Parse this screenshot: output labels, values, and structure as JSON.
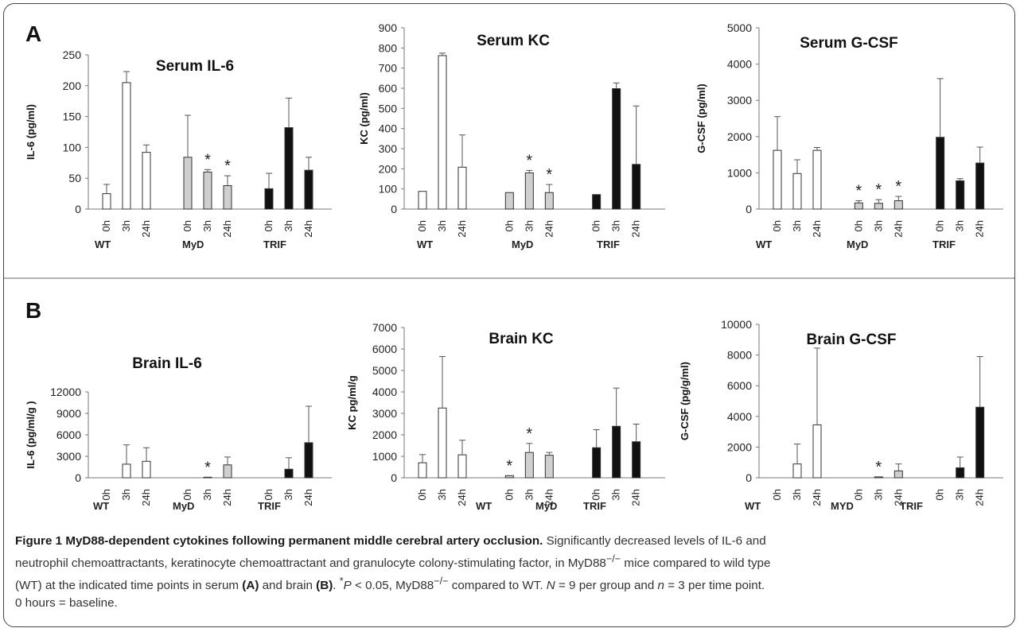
{
  "figure": {
    "panels": [
      {
        "letter": "A"
      },
      {
        "letter": "B"
      }
    ],
    "caption": {
      "label": "Figure 1",
      "title": "MyD88-dependent cytokines following permanent middle cerebral artery occlusion.",
      "line1": "Significantly decreased levels of IL-6 and",
      "line2": "neutrophil chemoattractants, keratinocyte chemoattractant and granulocyte colony-stimulating factor, in MyD88",
      "line2_sup": "−/−",
      "line2_end": " mice compared to wild type",
      "line3_a": "(WT) at the indicated time points in serum ",
      "line3_A": "(A)",
      "line3_b": " and brain ",
      "line3_B": "(B)",
      "line3_c": ". ",
      "line3_star": "*",
      "line3_P": "P",
      "line3_d": " < 0.05, MyD88",
      "line3_sup": "−/−",
      "line3_e": " compared to WT. ",
      "line3_N": "N",
      "line3_f": " = 9 per group and ",
      "line3_n": "n",
      "line3_g": " = 3 per time point.",
      "line4": "0 hours = baseline."
    }
  },
  "colors": {
    "wt": "#ffffff",
    "myd": "#cfcfcf",
    "trif": "#111111",
    "outline": "#333333"
  },
  "chart_data": [
    {
      "id": "serum-il6",
      "type": "bar",
      "title": "Serum IL-6",
      "ylabel": "IL-6 (pg/ml)",
      "ylim": [
        0,
        250
      ],
      "yticks": [
        0,
        50,
        100,
        150,
        200,
        250
      ],
      "groups": [
        "WT",
        "MyD",
        "TRIF"
      ],
      "categories": [
        "0h",
        "3h",
        "24h"
      ],
      "series": [
        {
          "values": [
            25,
            205,
            92
          ],
          "errors": [
            15,
            18,
            12
          ],
          "sig": [
            false,
            false,
            false
          ]
        },
        {
          "values": [
            84,
            60,
            38
          ],
          "errors": [
            68,
            4,
            16
          ],
          "sig": [
            false,
            true,
            true
          ]
        },
        {
          "values": [
            33,
            132,
            63
          ],
          "errors": [
            25,
            48,
            21
          ],
          "sig": [
            false,
            false,
            false
          ]
        }
      ]
    },
    {
      "id": "serum-kc",
      "type": "bar",
      "title": "Serum KC",
      "ylabel": "KC (pg/ml)",
      "ylim": [
        0,
        900
      ],
      "yticks": [
        0,
        100,
        200,
        300,
        400,
        500,
        600,
        700,
        800,
        900
      ],
      "groups": [
        "WT",
        "MyD",
        "TRIF"
      ],
      "categories": [
        "0h",
        "3h",
        "24h"
      ],
      "series": [
        {
          "values": [
            88,
            762,
            208
          ],
          "errors": [
            0,
            12,
            160
          ],
          "sig": [
            false,
            false,
            false
          ]
        },
        {
          "values": [
            82,
            180,
            82
          ],
          "errors": [
            0,
            12,
            40
          ],
          "sig": [
            false,
            true,
            true
          ]
        },
        {
          "values": [
            72,
            598,
            222
          ],
          "errors": [
            0,
            28,
            290
          ],
          "sig": [
            false,
            false,
            false
          ]
        }
      ]
    },
    {
      "id": "serum-gcsf",
      "type": "bar",
      "title": "Serum G-CSF",
      "ylabel": "G-CSF (pg/ml)",
      "ylim": [
        0,
        5000
      ],
      "yticks": [
        0,
        1000,
        2000,
        3000,
        4000,
        5000
      ],
      "groups": [
        "WT",
        "MyD",
        "TRIF"
      ],
      "categories": [
        "0h",
        "3h",
        "24h"
      ],
      "series": [
        {
          "values": [
            1620,
            980,
            1620
          ],
          "errors": [
            930,
            380,
            80
          ],
          "sig": [
            false,
            false,
            false
          ]
        },
        {
          "values": [
            170,
            160,
            230
          ],
          "errors": [
            60,
            100,
            120
          ],
          "sig": [
            true,
            true,
            true
          ]
        },
        {
          "values": [
            1980,
            780,
            1270
          ],
          "errors": [
            1620,
            60,
            440
          ],
          "sig": [
            false,
            false,
            false
          ]
        }
      ]
    },
    {
      "id": "brain-il6",
      "type": "bar",
      "title": "Brain IL-6",
      "ylabel": "IL-6 (pg/ml/g )",
      "ylim": [
        0,
        12000
      ],
      "yticks": [
        0,
        3000,
        6000,
        9000,
        12000
      ],
      "groups": [
        "WT",
        "MyD",
        "TRIF"
      ],
      "categories": [
        "0h",
        "3h",
        "24h"
      ],
      "series": [
        {
          "values": [
            0,
            1900,
            2300
          ],
          "errors": [
            0,
            2700,
            1900
          ],
          "sig": [
            false,
            false,
            false
          ]
        },
        {
          "values": [
            0,
            80,
            1800
          ],
          "errors": [
            0,
            0,
            1100
          ],
          "sig": [
            false,
            true,
            false
          ]
        },
        {
          "values": [
            0,
            1200,
            4900
          ],
          "errors": [
            0,
            1600,
            5100
          ],
          "sig": [
            false,
            false,
            false
          ]
        }
      ]
    },
    {
      "id": "brain-kc",
      "type": "bar",
      "title": "Brain KC",
      "ylabel": "KC pg/ml/g",
      "ylim": [
        0,
        7000
      ],
      "yticks": [
        0,
        1000,
        2000,
        3000,
        4000,
        5000,
        6000,
        7000
      ],
      "groups": [
        "WT",
        "MyD",
        "TRIF"
      ],
      "categories": [
        "0h",
        "3h",
        "24h"
      ],
      "series": [
        {
          "values": [
            700,
            3250,
            1070
          ],
          "errors": [
            380,
            2400,
            680
          ],
          "sig": [
            false,
            false,
            false
          ]
        },
        {
          "values": [
            100,
            1180,
            1050
          ],
          "errors": [
            0,
            420,
            130
          ],
          "sig": [
            true,
            true,
            false
          ]
        },
        {
          "values": [
            1400,
            2400,
            1680
          ],
          "errors": [
            840,
            1780,
            820
          ],
          "sig": [
            false,
            false,
            false
          ]
        }
      ]
    },
    {
      "id": "brain-gcsf",
      "type": "bar",
      "title": "Brain G-CSF",
      "ylabel": "G-CSF (pg/g/ml)",
      "ylim": [
        0,
        10000
      ],
      "yticks": [
        0,
        2000,
        4000,
        6000,
        8000,
        10000
      ],
      "groups": [
        "WT",
        "MYD",
        "TRIF"
      ],
      "categories": [
        "0h",
        "3h",
        "24h"
      ],
      "series": [
        {
          "values": [
            0,
            900,
            3450
          ],
          "errors": [
            0,
            1300,
            5000
          ],
          "sig": [
            false,
            false,
            false
          ]
        },
        {
          "values": [
            0,
            60,
            450
          ],
          "errors": [
            0,
            0,
            450
          ],
          "sig": [
            false,
            true,
            false
          ]
        },
        {
          "values": [
            0,
            650,
            4600
          ],
          "errors": [
            0,
            700,
            3300
          ],
          "sig": [
            false,
            false,
            false
          ]
        }
      ]
    }
  ]
}
